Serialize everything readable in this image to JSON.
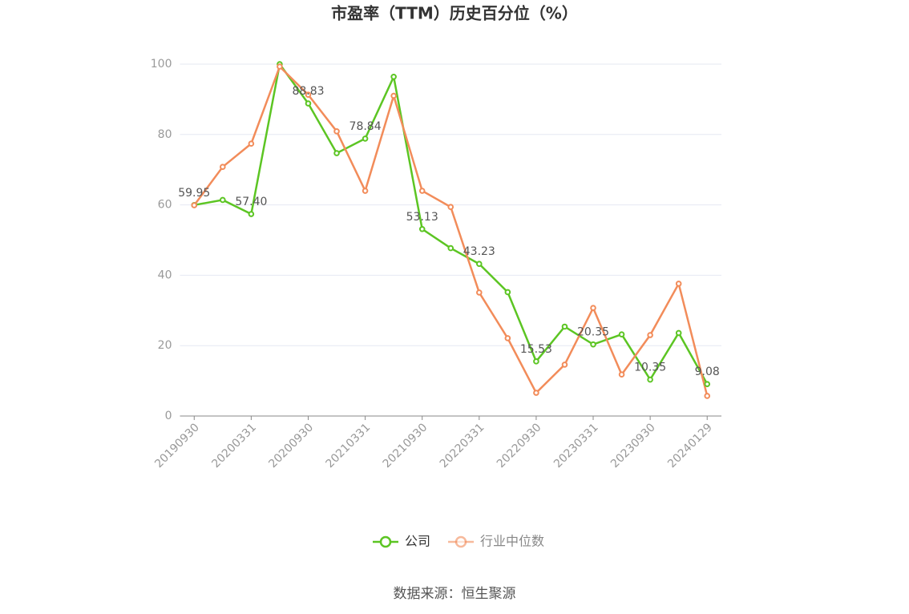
{
  "chart_data": {
    "type": "line",
    "title": "市盈率（TTM）历史百分位（%）",
    "categories": [
      "20190930",
      null,
      "20200331",
      null,
      "20200930",
      null,
      "20210331",
      null,
      "20210930",
      null,
      "20220331",
      null,
      "20220930",
      null,
      "20230331",
      null,
      "20230930",
      null,
      "20240129"
    ],
    "series": [
      {
        "name": "公司",
        "color": "#5cc523",
        "values": [
          59.95,
          61.4,
          57.4,
          100,
          88.83,
          74.7,
          78.84,
          96.4,
          53.13,
          47.7,
          43.23,
          35.2,
          15.53,
          25.4,
          20.35,
          23.2,
          10.35,
          23.6,
          9.08
        ],
        "value_labels": [
          "59.95",
          null,
          "57.40",
          null,
          "88.83",
          null,
          "78.84",
          null,
          "53.13",
          null,
          "43.23",
          null,
          "15.53",
          null,
          "20.35",
          null,
          "10.35",
          null,
          "9.08"
        ]
      },
      {
        "name": "行业中位数",
        "color": "#f28c5a",
        "values": [
          59.9,
          70.8,
          77.4,
          99.3,
          91.3,
          80.9,
          64.0,
          91.0,
          64.0,
          59.4,
          35.1,
          22.1,
          6.6,
          14.6,
          30.7,
          11.8,
          23.0,
          37.6,
          5.7
        ]
      }
    ],
    "ylim": [
      0,
      100
    ],
    "yticks": [
      0,
      20,
      40,
      60,
      80,
      100
    ],
    "grid": true,
    "legend": "bottom",
    "source": "数据来源：恒生聚源"
  }
}
